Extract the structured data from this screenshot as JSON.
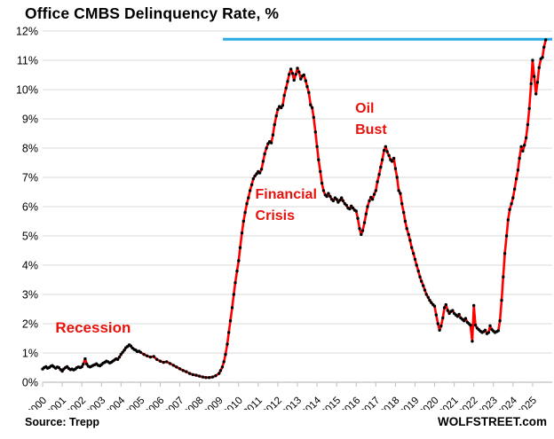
{
  "header": {
    "title": "Office CMBS Delinquency Rate, %"
  },
  "footer": {
    "source": "Source: Trepp",
    "site": "WOLFSTREET.com"
  },
  "colors": {
    "line": "#ff0000",
    "marker": "#000000",
    "reference_line": "#29abe2",
    "grid": "#d9d9d9",
    "axis": "#bfbfbf",
    "annotation_text": "#e8120c",
    "axis_text": "#000000"
  },
  "chart_data": {
    "type": "line",
    "title": "Office CMBS Delinquency Rate, %",
    "xlabel": "",
    "ylabel": "",
    "xlim": [
      2000,
      2026
    ],
    "ylim": [
      0,
      12
    ],
    "grid": "horizontal",
    "legend_position": "none",
    "y_tick_labels": [
      "0%",
      "1%",
      "2%",
      "3%",
      "4%",
      "5%",
      "6%",
      "7%",
      "8%",
      "9%",
      "10%",
      "11%",
      "12%"
    ],
    "x_tick_labels": [
      "2000",
      "2001",
      "2002",
      "2003",
      "2004",
      "2005",
      "2006",
      "2007",
      "2008",
      "2009",
      "2010",
      "2011",
      "2012",
      "2013",
      "2014",
      "2015",
      "2016",
      "2017",
      "2018",
      "2019",
      "2020",
      "2021",
      "2022",
      "2023",
      "2024",
      "2025"
    ],
    "reference_line": {
      "y": 11.72,
      "x_start": 2009.2,
      "x_end": 2026,
      "color": "#29abe2"
    },
    "annotations": [
      {
        "id": "recession",
        "text": "Recession",
        "x": 2000.65,
        "y_pct": 2.25,
        "font_px": 17
      },
      {
        "id": "financial-crisis",
        "text": "Financial\nCrisis",
        "x": 2010.85,
        "y_pct": 6.75,
        "font_px": 16
      },
      {
        "id": "oil-bust",
        "text": "Oil\nBust",
        "x": 2015.95,
        "y_pct": 9.7,
        "font_px": 16
      }
    ],
    "series": [
      {
        "name": "Office CMBS delinquency rate, monthly, %",
        "color": "#ff0000",
        "marker_color": "#000000",
        "points": [
          [
            2000.0,
            0.45
          ],
          [
            2000.08,
            0.5
          ],
          [
            2000.17,
            0.53
          ],
          [
            2000.25,
            0.48
          ],
          [
            2000.33,
            0.5
          ],
          [
            2000.42,
            0.55
          ],
          [
            2000.5,
            0.57
          ],
          [
            2000.58,
            0.52
          ],
          [
            2000.67,
            0.48
          ],
          [
            2000.75,
            0.52
          ],
          [
            2000.83,
            0.5
          ],
          [
            2000.92,
            0.43
          ],
          [
            2001.0,
            0.38
          ],
          [
            2001.08,
            0.45
          ],
          [
            2001.17,
            0.5
          ],
          [
            2001.25,
            0.53
          ],
          [
            2001.33,
            0.47
          ],
          [
            2001.42,
            0.43
          ],
          [
            2001.5,
            0.45
          ],
          [
            2001.58,
            0.42
          ],
          [
            2001.67,
            0.45
          ],
          [
            2001.75,
            0.5
          ],
          [
            2001.83,
            0.52
          ],
          [
            2001.92,
            0.5
          ],
          [
            2002.0,
            0.53
          ],
          [
            2002.08,
            0.62
          ],
          [
            2002.17,
            0.8
          ],
          [
            2002.25,
            0.62
          ],
          [
            2002.33,
            0.55
          ],
          [
            2002.42,
            0.52
          ],
          [
            2002.5,
            0.55
          ],
          [
            2002.58,
            0.58
          ],
          [
            2002.67,
            0.6
          ],
          [
            2002.75,
            0.63
          ],
          [
            2002.83,
            0.58
          ],
          [
            2002.92,
            0.56
          ],
          [
            2003.0,
            0.6
          ],
          [
            2003.08,
            0.65
          ],
          [
            2003.17,
            0.68
          ],
          [
            2003.25,
            0.72
          ],
          [
            2003.33,
            0.7
          ],
          [
            2003.42,
            0.66
          ],
          [
            2003.5,
            0.68
          ],
          [
            2003.58,
            0.72
          ],
          [
            2003.67,
            0.76
          ],
          [
            2003.75,
            0.8
          ],
          [
            2003.83,
            0.78
          ],
          [
            2003.92,
            0.86
          ],
          [
            2004.0,
            0.95
          ],
          [
            2004.08,
            1.02
          ],
          [
            2004.17,
            1.1
          ],
          [
            2004.25,
            1.18
          ],
          [
            2004.33,
            1.22
          ],
          [
            2004.42,
            1.28
          ],
          [
            2004.5,
            1.24
          ],
          [
            2004.58,
            1.17
          ],
          [
            2004.67,
            1.12
          ],
          [
            2004.75,
            1.1
          ],
          [
            2004.83,
            1.05
          ],
          [
            2004.92,
            1.06
          ],
          [
            2005.0,
            1.02
          ],
          [
            2005.17,
            0.95
          ],
          [
            2005.33,
            0.9
          ],
          [
            2005.5,
            0.86
          ],
          [
            2005.67,
            0.88
          ],
          [
            2005.83,
            0.78
          ],
          [
            2006.0,
            0.72
          ],
          [
            2006.17,
            0.68
          ],
          [
            2006.33,
            0.7
          ],
          [
            2006.5,
            0.64
          ],
          [
            2006.67,
            0.58
          ],
          [
            2006.83,
            0.52
          ],
          [
            2007.0,
            0.46
          ],
          [
            2007.17,
            0.4
          ],
          [
            2007.33,
            0.36
          ],
          [
            2007.5,
            0.3
          ],
          [
            2007.67,
            0.26
          ],
          [
            2007.83,
            0.24
          ],
          [
            2008.0,
            0.21
          ],
          [
            2008.17,
            0.18
          ],
          [
            2008.33,
            0.16
          ],
          [
            2008.5,
            0.16
          ],
          [
            2008.67,
            0.18
          ],
          [
            2008.83,
            0.22
          ],
          [
            2009.0,
            0.3
          ],
          [
            2009.08,
            0.4
          ],
          [
            2009.17,
            0.52
          ],
          [
            2009.25,
            0.7
          ],
          [
            2009.33,
            0.95
          ],
          [
            2009.42,
            1.3
          ],
          [
            2009.5,
            1.7
          ],
          [
            2009.58,
            2.1
          ],
          [
            2009.67,
            2.55
          ],
          [
            2009.75,
            3.0
          ],
          [
            2009.83,
            3.4
          ],
          [
            2009.92,
            3.8
          ],
          [
            2010.0,
            4.15
          ],
          [
            2010.08,
            4.6
          ],
          [
            2010.17,
            5.1
          ],
          [
            2010.25,
            5.5
          ],
          [
            2010.33,
            5.8
          ],
          [
            2010.42,
            6.1
          ],
          [
            2010.5,
            6.3
          ],
          [
            2010.58,
            6.55
          ],
          [
            2010.67,
            6.75
          ],
          [
            2010.75,
            6.95
          ],
          [
            2010.83,
            7.05
          ],
          [
            2010.92,
            7.12
          ],
          [
            2011.0,
            7.2
          ],
          [
            2011.08,
            7.15
          ],
          [
            2011.17,
            7.28
          ],
          [
            2011.25,
            7.55
          ],
          [
            2011.33,
            7.8
          ],
          [
            2011.42,
            8.0
          ],
          [
            2011.5,
            8.15
          ],
          [
            2011.58,
            8.22
          ],
          [
            2011.67,
            8.18
          ],
          [
            2011.75,
            8.45
          ],
          [
            2011.83,
            8.8
          ],
          [
            2011.92,
            9.1
          ],
          [
            2012.0,
            9.32
          ],
          [
            2012.08,
            9.42
          ],
          [
            2012.17,
            9.38
          ],
          [
            2012.25,
            9.46
          ],
          [
            2012.33,
            9.8
          ],
          [
            2012.42,
            10.05
          ],
          [
            2012.5,
            10.28
          ],
          [
            2012.58,
            10.52
          ],
          [
            2012.67,
            10.7
          ],
          [
            2012.75,
            10.55
          ],
          [
            2012.83,
            10.32
          ],
          [
            2012.92,
            10.52
          ],
          [
            2013.0,
            10.73
          ],
          [
            2013.08,
            10.6
          ],
          [
            2013.17,
            10.36
          ],
          [
            2013.25,
            10.46
          ],
          [
            2013.33,
            10.5
          ],
          [
            2013.42,
            10.3
          ],
          [
            2013.5,
            10.1
          ],
          [
            2013.58,
            9.9
          ],
          [
            2013.67,
            9.48
          ],
          [
            2013.75,
            9.38
          ],
          [
            2013.83,
            9.05
          ],
          [
            2013.92,
            8.55
          ],
          [
            2014.0,
            8.05
          ],
          [
            2014.08,
            7.6
          ],
          [
            2014.17,
            7.2
          ],
          [
            2014.25,
            6.8
          ],
          [
            2014.33,
            6.55
          ],
          [
            2014.42,
            6.4
          ],
          [
            2014.5,
            6.35
          ],
          [
            2014.58,
            6.45
          ],
          [
            2014.67,
            6.35
          ],
          [
            2014.75,
            6.25
          ],
          [
            2014.83,
            6.2
          ],
          [
            2014.92,
            6.3
          ],
          [
            2015.0,
            6.25
          ],
          [
            2015.08,
            6.15
          ],
          [
            2015.17,
            6.22
          ],
          [
            2015.25,
            6.3
          ],
          [
            2015.33,
            6.2
          ],
          [
            2015.42,
            6.1
          ],
          [
            2015.5,
            6.05
          ],
          [
            2015.58,
            5.95
          ],
          [
            2015.67,
            5.92
          ],
          [
            2015.75,
            6.02
          ],
          [
            2015.83,
            5.95
          ],
          [
            2015.92,
            5.88
          ],
          [
            2016.0,
            5.85
          ],
          [
            2016.08,
            5.6
          ],
          [
            2016.17,
            5.25
          ],
          [
            2016.25,
            5.05
          ],
          [
            2016.33,
            5.18
          ],
          [
            2016.42,
            5.45
          ],
          [
            2016.5,
            5.75
          ],
          [
            2016.58,
            6.0
          ],
          [
            2016.67,
            6.2
          ],
          [
            2016.75,
            6.32
          ],
          [
            2016.83,
            6.25
          ],
          [
            2016.92,
            6.42
          ],
          [
            2017.0,
            6.55
          ],
          [
            2017.08,
            6.85
          ],
          [
            2017.17,
            7.1
          ],
          [
            2017.25,
            7.35
          ],
          [
            2017.33,
            7.6
          ],
          [
            2017.42,
            7.92
          ],
          [
            2017.5,
            8.05
          ],
          [
            2017.58,
            7.88
          ],
          [
            2017.67,
            7.75
          ],
          [
            2017.75,
            7.6
          ],
          [
            2017.83,
            7.55
          ],
          [
            2017.92,
            7.65
          ],
          [
            2018.0,
            7.3
          ],
          [
            2018.08,
            7.0
          ],
          [
            2018.17,
            6.55
          ],
          [
            2018.25,
            6.45
          ],
          [
            2018.33,
            6.1
          ],
          [
            2018.42,
            5.8
          ],
          [
            2018.5,
            5.5
          ],
          [
            2018.58,
            5.25
          ],
          [
            2018.67,
            5.05
          ],
          [
            2018.75,
            4.85
          ],
          [
            2018.83,
            4.6
          ],
          [
            2018.92,
            4.4
          ],
          [
            2019.0,
            4.2
          ],
          [
            2019.08,
            4.0
          ],
          [
            2019.17,
            3.8
          ],
          [
            2019.25,
            3.6
          ],
          [
            2019.33,
            3.45
          ],
          [
            2019.42,
            3.3
          ],
          [
            2019.5,
            3.15
          ],
          [
            2019.58,
            3.0
          ],
          [
            2019.67,
            2.9
          ],
          [
            2019.75,
            2.8
          ],
          [
            2019.83,
            2.72
          ],
          [
            2019.92,
            2.65
          ],
          [
            2020.0,
            2.6
          ],
          [
            2020.08,
            2.3
          ],
          [
            2020.17,
            2.0
          ],
          [
            2020.25,
            1.78
          ],
          [
            2020.33,
            1.92
          ],
          [
            2020.42,
            2.2
          ],
          [
            2020.5,
            2.55
          ],
          [
            2020.58,
            2.65
          ],
          [
            2020.67,
            2.45
          ],
          [
            2020.75,
            2.35
          ],
          [
            2020.83,
            2.42
          ],
          [
            2020.92,
            2.45
          ],
          [
            2021.0,
            2.35
          ],
          [
            2021.08,
            2.3
          ],
          [
            2021.17,
            2.25
          ],
          [
            2021.25,
            2.32
          ],
          [
            2021.33,
            2.2
          ],
          [
            2021.42,
            2.15
          ],
          [
            2021.5,
            2.1
          ],
          [
            2021.58,
            2.18
          ],
          [
            2021.67,
            2.05
          ],
          [
            2021.75,
            2.0
          ],
          [
            2021.83,
            1.95
          ],
          [
            2021.92,
            1.4
          ],
          [
            2022.0,
            2.62
          ],
          [
            2022.08,
            1.95
          ],
          [
            2022.17,
            1.85
          ],
          [
            2022.25,
            1.8
          ],
          [
            2022.33,
            1.75
          ],
          [
            2022.42,
            1.7
          ],
          [
            2022.5,
            1.73
          ],
          [
            2022.58,
            1.78
          ],
          [
            2022.67,
            1.66
          ],
          [
            2022.75,
            1.7
          ],
          [
            2022.83,
            1.93
          ],
          [
            2022.92,
            1.8
          ],
          [
            2023.0,
            1.75
          ],
          [
            2023.08,
            1.7
          ],
          [
            2023.17,
            1.73
          ],
          [
            2023.25,
            1.76
          ],
          [
            2023.33,
            2.1
          ],
          [
            2023.42,
            2.8
          ],
          [
            2023.5,
            3.6
          ],
          [
            2023.58,
            4.4
          ],
          [
            2023.67,
            5.0
          ],
          [
            2023.75,
            5.55
          ],
          [
            2023.83,
            5.9
          ],
          [
            2023.92,
            6.1
          ],
          [
            2024.0,
            6.3
          ],
          [
            2024.08,
            6.6
          ],
          [
            2024.17,
            6.95
          ],
          [
            2024.25,
            7.25
          ],
          [
            2024.33,
            7.65
          ],
          [
            2024.42,
            8.05
          ],
          [
            2024.5,
            7.9
          ],
          [
            2024.58,
            8.1
          ],
          [
            2024.67,
            8.35
          ],
          [
            2024.75,
            8.8
          ],
          [
            2024.83,
            9.35
          ],
          [
            2024.92,
            10.2
          ],
          [
            2025.0,
            11.0
          ],
          [
            2025.08,
            10.45
          ],
          [
            2025.17,
            9.85
          ],
          [
            2025.25,
            10.25
          ],
          [
            2025.33,
            10.75
          ],
          [
            2025.42,
            11.05
          ],
          [
            2025.5,
            11.1
          ],
          [
            2025.58,
            11.45
          ],
          [
            2025.67,
            11.7
          ]
        ]
      }
    ]
  }
}
